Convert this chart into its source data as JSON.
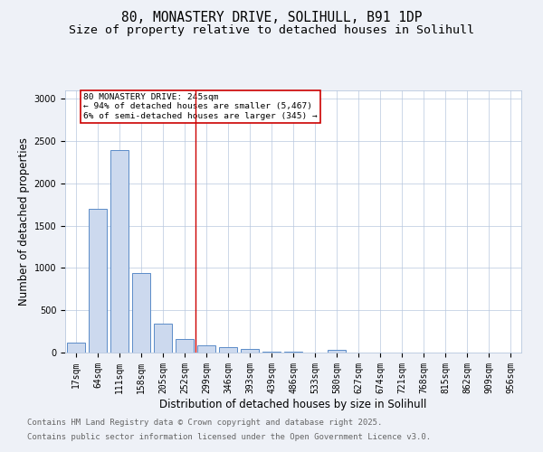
{
  "title1": "80, MONASTERY DRIVE, SOLIHULL, B91 1DP",
  "title2": "Size of property relative to detached houses in Solihull",
  "xlabel": "Distribution of detached houses by size in Solihull",
  "ylabel": "Number of detached properties",
  "categories": [
    "17sqm",
    "64sqm",
    "111sqm",
    "158sqm",
    "205sqm",
    "252sqm",
    "299sqm",
    "346sqm",
    "393sqm",
    "439sqm",
    "486sqm",
    "533sqm",
    "580sqm",
    "627sqm",
    "674sqm",
    "721sqm",
    "768sqm",
    "815sqm",
    "862sqm",
    "909sqm",
    "956sqm"
  ],
  "values": [
    120,
    1700,
    2390,
    940,
    340,
    160,
    90,
    60,
    40,
    15,
    10,
    5,
    30,
    3,
    3,
    3,
    3,
    3,
    2,
    2,
    2
  ],
  "bar_color": "#ccd9ee",
  "bar_edge_color": "#5b8cc8",
  "vline_index": 5,
  "vline_color": "#cc0000",
  "annotation_text": "80 MONASTERY DRIVE: 245sqm\n← 94% of detached houses are smaller (5,467)\n6% of semi-detached houses are larger (345) →",
  "annotation_box_color": "#ffffff",
  "annotation_box_edge_color": "#cc0000",
  "ylim": [
    0,
    3100
  ],
  "yticks": [
    0,
    500,
    1000,
    1500,
    2000,
    2500,
    3000
  ],
  "footer1": "Contains HM Land Registry data © Crown copyright and database right 2025.",
  "footer2": "Contains public sector information licensed under the Open Government Licence v3.0.",
  "bg_color": "#eef1f7",
  "plot_bg_color": "#ffffff",
  "grid_color": "#b8c8de",
  "title_fontsize": 10.5,
  "subtitle_fontsize": 9.5,
  "axis_label_fontsize": 8.5,
  "tick_fontsize": 7,
  "footer_fontsize": 6.5
}
